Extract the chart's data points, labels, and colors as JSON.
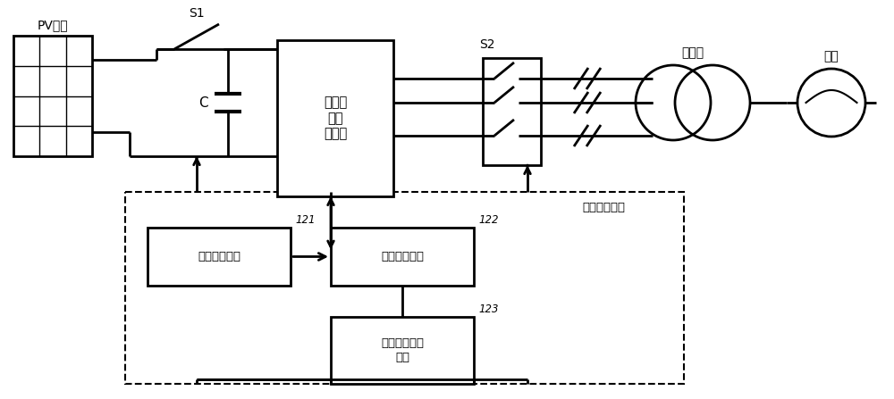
{
  "bg_color": "#ffffff",
  "line_color": "#000000",
  "fig_width": 10.0,
  "fig_height": 4.47,
  "dpi": 100,
  "labels": {
    "pv": "PV阵列",
    "inverter": "模块化\n光伏\n逆变器",
    "transformer_label": "变压器",
    "grid_label": "电网",
    "s1": "S1",
    "s2": "S2",
    "c": "C",
    "fault_device": "故障处理装置",
    "data_collect": "数据采集模块",
    "fault_judge": "故障判断模块",
    "control_signal": "控制信号生成\n模块",
    "label_121": "121",
    "label_122": "122",
    "label_123": "123"
  }
}
